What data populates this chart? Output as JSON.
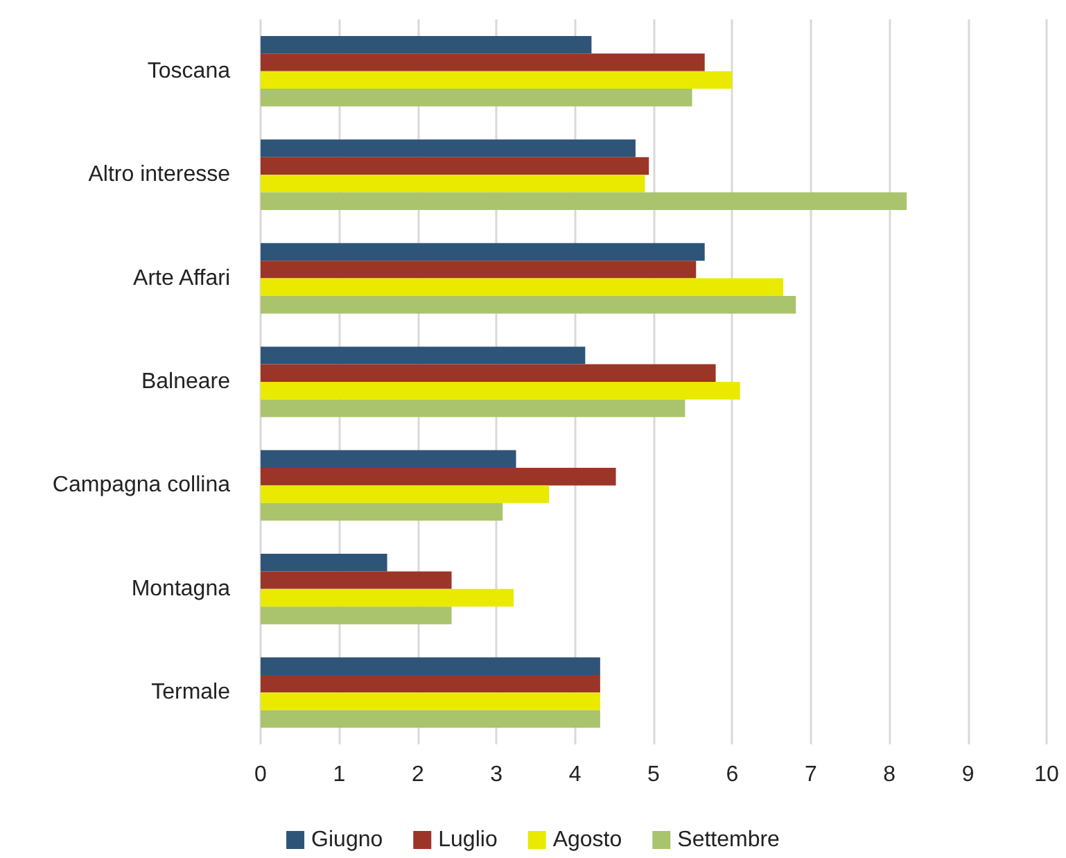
{
  "chart_data": {
    "type": "bar",
    "orientation": "horizontal",
    "categories": [
      "Toscana",
      "Altro interesse",
      "Arte Affari",
      "Balneare",
      "Campagna collina",
      "Montagna",
      "Termale"
    ],
    "series": [
      {
        "name": "Giugno",
        "color": "#2e5477",
        "values": [
          4.21,
          4.77,
          5.65,
          4.13,
          3.25,
          1.61,
          4.32
        ]
      },
      {
        "name": "Luglio",
        "color": "#9b3527",
        "values": [
          5.65,
          4.94,
          5.54,
          5.79,
          4.52,
          2.43,
          4.32
        ]
      },
      {
        "name": "Agosto",
        "color": "#eaea00",
        "values": [
          6.0,
          4.89,
          6.65,
          6.1,
          3.67,
          3.22,
          4.32
        ]
      },
      {
        "name": "Settembre",
        "color": "#a9c46c",
        "values": [
          5.49,
          8.22,
          6.81,
          5.4,
          3.08,
          2.43,
          4.32
        ]
      }
    ],
    "xlim": [
      0,
      10
    ],
    "xticks": [
      0,
      1,
      2,
      3,
      4,
      5,
      6,
      7,
      8,
      9,
      10
    ],
    "grid": "x",
    "legend": "bottom"
  }
}
